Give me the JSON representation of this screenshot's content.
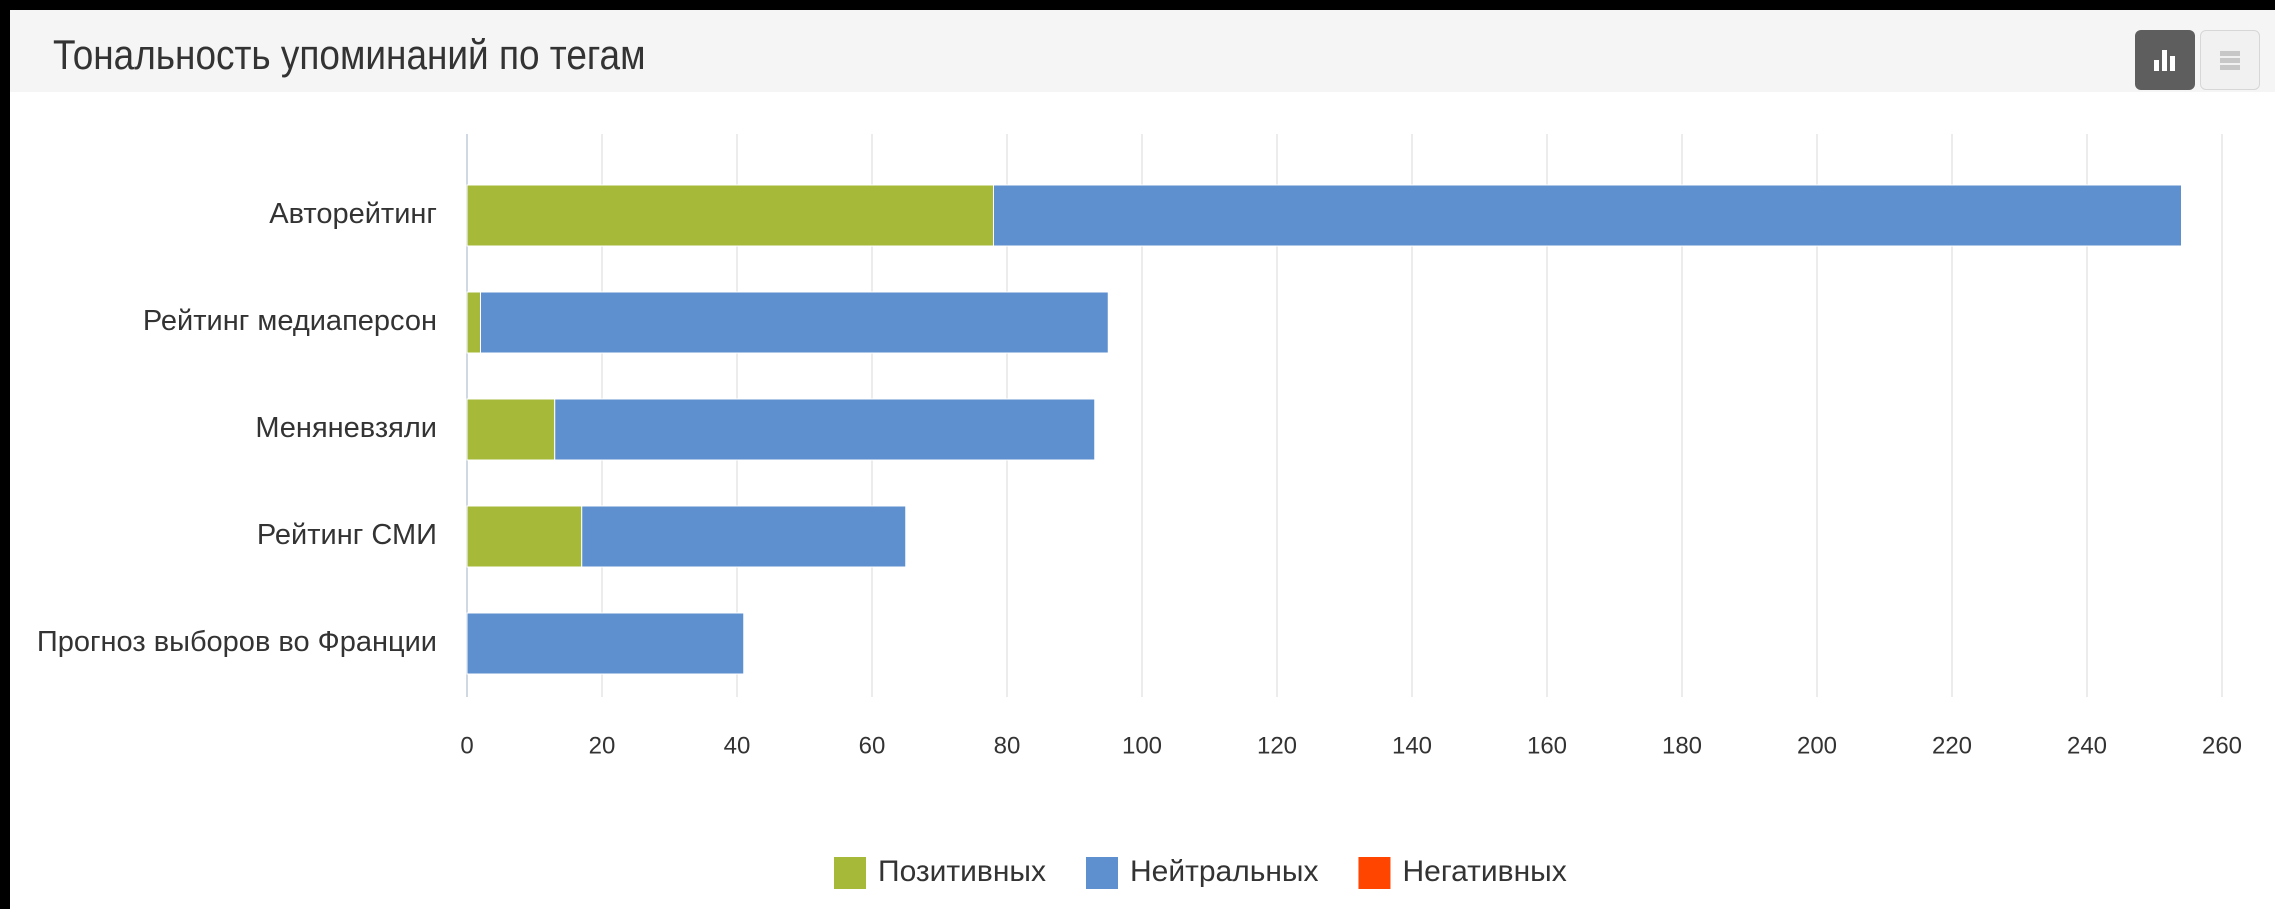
{
  "header": {
    "title": "Тональность упоминаний по тегам"
  },
  "view_toggle": {
    "active": "bar",
    "options": [
      {
        "name": "bar",
        "icon": "bar-chart-icon"
      },
      {
        "name": "table",
        "icon": "table-icon"
      }
    ]
  },
  "chart_data": {
    "type": "bar",
    "orientation": "horizontal",
    "stacked": true,
    "title": "",
    "xlabel": "",
    "ylabel": "",
    "categories": [
      "Авторейтинг",
      "Рейтинг медиаперсон",
      "Меняневзяли",
      "Рейтинг СМИ",
      "Прогноз выборов во Франции"
    ],
    "series": [
      {
        "name": "Позитивных",
        "color": "#a6b938",
        "values": [
          78,
          2,
          13,
          17,
          0
        ]
      },
      {
        "name": "Нейтральных",
        "color": "#5e8fcf",
        "values": [
          176,
          93,
          80,
          48,
          41
        ]
      },
      {
        "name": "Негативных",
        "color": "#ff4500",
        "values": [
          0,
          0,
          0,
          0,
          0
        ]
      }
    ],
    "xlim": [
      0,
      260
    ],
    "ticks": [
      0,
      20,
      40,
      60,
      80,
      100,
      120,
      140,
      160,
      180,
      200,
      220,
      240,
      260
    ],
    "grid": true,
    "legend_position": "bottom-center"
  }
}
